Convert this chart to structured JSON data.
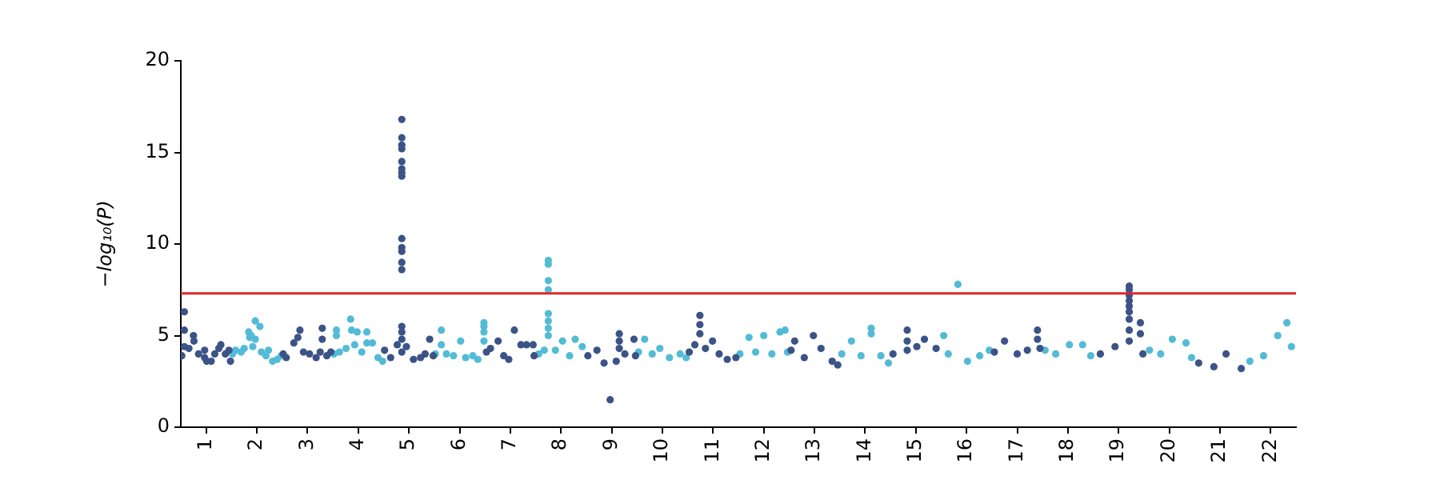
{
  "chart_data": {
    "type": "scatter",
    "ylabel": "−log₁₀(P)",
    "marker": "circle",
    "grid": false,
    "xlim": [
      0.5,
      22.5
    ],
    "ylim": [
      0,
      20
    ],
    "yticks": [
      0,
      5,
      10,
      15,
      20
    ],
    "xticks": [
      1,
      2,
      3,
      4,
      5,
      6,
      7,
      8,
      9,
      10,
      11,
      12,
      13,
      14,
      15,
      16,
      17,
      18,
      19,
      20,
      21,
      22
    ],
    "ref_lines": [
      {
        "axis": "y",
        "value": 7.3,
        "color": "#e0262b"
      }
    ],
    "series": [
      {
        "color": "#3b5387",
        "x": [
          0.52,
          0.57,
          0.57,
          0.57,
          0.66,
          0.75,
          0.76,
          0.85,
          0.97,
          0.97,
          1.01,
          1.1,
          1.17,
          1.25,
          1.29,
          1.38,
          1.45,
          1.48,
          2.52,
          2.58,
          2.73,
          2.81,
          2.85,
          2.92,
          3.04,
          3.17,
          3.25,
          3.29,
          3.29,
          3.38,
          3.46,
          4.52,
          4.64,
          4.77,
          4.86,
          4.86,
          4.86,
          4.86,
          4.86,
          4.86,
          4.86,
          4.86,
          4.86,
          4.86,
          4.86,
          4.86,
          4.86,
          4.86,
          4.86,
          4.86,
          4.86,
          4.95,
          5.09,
          5.23,
          5.32,
          5.41,
          5.48,
          6.53,
          6.61,
          6.76,
          6.87,
          6.97,
          7.08,
          7.21,
          7.32,
          7.45,
          7.47,
          8.53,
          8.71,
          8.85,
          8.97,
          9.09,
          9.15,
          9.15,
          9.15,
          9.26,
          9.44,
          9.47,
          10.53,
          10.64,
          10.74,
          10.74,
          10.74,
          10.85,
          10.99,
          11.12,
          11.28,
          11.45,
          12.54,
          12.61,
          12.8,
          12.98,
          13.13,
          13.35,
          13.46,
          14.55,
          14.83,
          14.83,
          14.83,
          15.02,
          15.17,
          15.4,
          16.55,
          16.75,
          17.0,
          17.2,
          17.4,
          17.4,
          17.45,
          18.64,
          18.93,
          19.21,
          19.21,
          19.21,
          19.21,
          19.21,
          19.21,
          19.21,
          19.21,
          19.21,
          19.43,
          19.43,
          19.48,
          20.58,
          20.88,
          21.12,
          21.42
        ],
        "values": [
          3.9,
          6.3,
          5.3,
          4.4,
          4.3,
          5.0,
          4.7,
          4.0,
          3.8,
          4.2,
          3.6,
          3.6,
          4.0,
          4.3,
          4.5,
          4.0,
          4.2,
          3.6,
          4.0,
          3.8,
          4.6,
          4.9,
          5.3,
          4.1,
          4.0,
          3.8,
          4.1,
          5.4,
          4.8,
          3.9,
          4.1,
          4.2,
          3.8,
          4.5,
          16.8,
          15.8,
          15.4,
          15.2,
          14.5,
          14.1,
          13.9,
          13.7,
          10.3,
          9.8,
          9.6,
          9.0,
          8.6,
          5.5,
          5.2,
          4.8,
          4.1,
          4.4,
          3.7,
          3.8,
          4.0,
          4.8,
          3.9,
          4.1,
          4.3,
          4.7,
          3.9,
          3.7,
          5.3,
          4.5,
          4.5,
          4.5,
          3.9,
          3.9,
          4.2,
          3.5,
          1.5,
          3.6,
          5.1,
          4.7,
          4.3,
          4.0,
          4.8,
          3.9,
          4.1,
          4.5,
          6.1,
          5.6,
          5.1,
          4.3,
          4.7,
          4.0,
          3.7,
          3.8,
          4.2,
          4.7,
          3.8,
          5.0,
          4.3,
          3.6,
          3.4,
          4.0,
          5.3,
          4.7,
          4.2,
          4.4,
          4.8,
          4.3,
          4.1,
          4.7,
          4.0,
          4.2,
          5.3,
          4.8,
          4.3,
          4.0,
          4.4,
          7.7,
          7.5,
          7.2,
          6.9,
          6.6,
          6.3,
          5.9,
          5.3,
          4.7,
          5.7,
          5.1,
          4.0,
          3.5,
          3.3,
          4.0,
          3.2
        ]
      },
      {
        "color": "#53bbd6",
        "x": [
          1.52,
          1.58,
          1.69,
          1.75,
          1.84,
          1.86,
          1.89,
          1.92,
          1.97,
          1.97,
          2.06,
          2.09,
          2.18,
          2.23,
          2.31,
          2.4,
          2.48,
          3.52,
          3.57,
          3.57,
          3.63,
          3.76,
          3.85,
          3.87,
          3.93,
          3.98,
          4.07,
          4.17,
          4.17,
          4.28,
          4.39,
          4.48,
          5.52,
          5.64,
          5.64,
          5.74,
          5.88,
          6.02,
          6.12,
          6.26,
          6.36,
          6.48,
          6.48,
          6.48,
          6.48,
          7.56,
          7.67,
          7.75,
          7.75,
          7.75,
          7.75,
          7.75,
          7.75,
          7.75,
          7.75,
          7.89,
          8.03,
          8.17,
          8.28,
          8.42,
          9.53,
          9.65,
          9.8,
          9.95,
          10.14,
          10.35,
          10.47,
          11.53,
          11.71,
          11.84,
          12.0,
          12.16,
          12.32,
          12.42,
          12.47,
          13.54,
          13.73,
          13.92,
          14.12,
          14.12,
          14.31,
          14.46,
          15.55,
          15.64,
          15.83,
          16.02,
          16.26,
          16.45,
          17.55,
          17.76,
          18.03,
          18.29,
          18.45,
          19.61,
          19.83,
          20.06,
          20.33,
          20.44,
          21.59,
          21.86,
          22.14,
          22.32,
          22.41
        ],
        "values": [
          4.0,
          4.2,
          4.1,
          4.3,
          5.2,
          4.9,
          5.0,
          4.4,
          5.8,
          4.8,
          5.5,
          4.1,
          3.9,
          4.2,
          3.6,
          3.7,
          3.9,
          4.0,
          5.3,
          5.0,
          4.1,
          4.3,
          5.9,
          5.3,
          4.5,
          5.2,
          4.1,
          5.2,
          4.6,
          4.6,
          3.8,
          3.6,
          4.0,
          5.3,
          4.5,
          4.0,
          3.9,
          4.7,
          3.8,
          3.9,
          3.7,
          5.7,
          5.5,
          5.2,
          4.7,
          4.0,
          4.2,
          9.1,
          8.9,
          8.0,
          7.5,
          6.2,
          5.8,
          5.4,
          5.0,
          4.2,
          4.7,
          3.9,
          4.8,
          4.4,
          4.1,
          4.8,
          4.0,
          4.3,
          3.8,
          4.0,
          3.8,
          4.0,
          4.9,
          4.1,
          5.0,
          4.0,
          5.2,
          5.3,
          4.1,
          4.0,
          4.7,
          3.9,
          5.4,
          5.1,
          3.9,
          3.5,
          5.0,
          4.0,
          7.8,
          3.6,
          3.9,
          4.2,
          4.2,
          4.0,
          4.5,
          4.5,
          3.9,
          4.2,
          4.0,
          4.8,
          4.6,
          3.8,
          3.6,
          3.9,
          5.0,
          5.7,
          4.4
        ]
      }
    ]
  }
}
